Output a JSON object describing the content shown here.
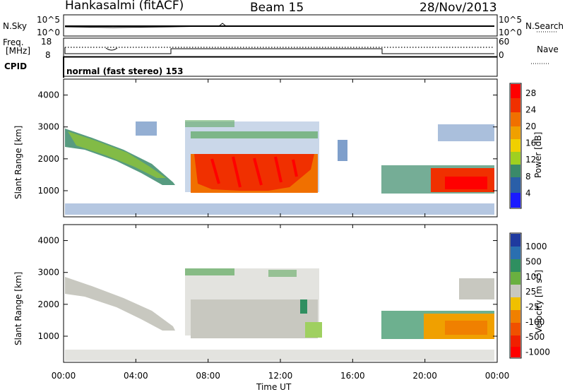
{
  "header": {
    "station": "Hankasalmi (fitACF)",
    "beam": "Beam 15",
    "date": "28/Nov/2013"
  },
  "status_rows": {
    "nsky_label": "N.Sky",
    "nsky_top": "10^5",
    "nsky_bot": "10^0",
    "nsearch_label": "N.Search",
    "nsearch_top": "10^5",
    "nsearch_bot": "10^0",
    "freq_label_1": "Freq.",
    "freq_label_2": "[MHz]",
    "freq_top": "18",
    "freq_bot": "8",
    "nave_label": "Nave",
    "nave_top": "60",
    "nave_bot": "0",
    "cpid_label": "CPID",
    "cpid_text": "normal (fast stereo) 153"
  },
  "colors": {
    "power_scale": [
      "#1a1aff",
      "#2a5fa8",
      "#3a8a6a",
      "#4aa04a",
      "#9fd020",
      "#f0d000",
      "#f0a000",
      "#f07000",
      "#f03000",
      "#ff0000"
    ],
    "velocity_scale": [
      "#1f3a9f",
      "#2a6fb0",
      "#2f8f60",
      "#6ab040",
      "#9fd060",
      "#c8c8c0",
      "#f0c000",
      "#f08000",
      "#f05000",
      "#f02000",
      "#ff0000"
    ],
    "ground_scatter": "#c8c8c0"
  },
  "chart_data": [
    {
      "type": "heatmap",
      "panel": "power",
      "ylabel": "Slant Range [km]",
      "yticks": [
        "1000",
        "2000",
        "3000",
        "4000"
      ],
      "ylim": [
        180,
        4500
      ],
      "colorbar_label": "Power [dB]",
      "colorbar_ticks": [
        "4",
        "8",
        "12",
        "16",
        "20",
        "24",
        "28"
      ],
      "clim": [
        0,
        30
      ],
      "echo_regions": [
        {
          "t_start_h": 0.0,
          "t_end_h": 6.0,
          "range_start_km": 2800,
          "range_end_km": 1100,
          "power_db": 12,
          "note": ""
        },
        {
          "t_start_h": 6.8,
          "t_end_h": 14.3,
          "range_start_km": 900,
          "range_end_km": 2200,
          "power_db": 26,
          "note": ""
        },
        {
          "t_start_h": 18.0,
          "t_end_h": 24.0,
          "range_start_km": 900,
          "range_end_km": 1700,
          "power_db": 24,
          "note": ""
        },
        {
          "t_start_h": 20.5,
          "t_end_h": 24.0,
          "range_start_km": 2500,
          "range_end_km": 3100,
          "power_db": 10,
          "note": ""
        }
      ]
    },
    {
      "type": "heatmap",
      "panel": "velocity",
      "ylabel": "Slant Range [km]",
      "yticks": [
        "1000",
        "2000",
        "3000",
        "4000"
      ],
      "ylim": [
        180,
        4500
      ],
      "colorbar_label": "Velocity [m s^-1]",
      "colorbar_ticks": [
        "1000",
        "500",
        "100",
        "25",
        "-25",
        "-100",
        "-500",
        "-1000"
      ],
      "clim": [
        -1000,
        1000
      ],
      "xlabel": "Time UT",
      "xticks": [
        "00:00",
        "04:00",
        "08:00",
        "12:00",
        "16:00",
        "20:00",
        "00:00"
      ],
      "xlim_hours": [
        0,
        24
      ],
      "echo_regions": [
        {
          "t_start_h": 0.0,
          "t_end_h": 6.0,
          "range_start_km": 2800,
          "range_end_km": 1100,
          "velocity": 0,
          "note": ""
        },
        {
          "t_start_h": 6.8,
          "t_end_h": 14.3,
          "range_start_km": 900,
          "range_end_km": 2200,
          "velocity": 0,
          "note": ""
        },
        {
          "t_start_h": 18.0,
          "t_end_h": 24.0,
          "range_start_km": 900,
          "range_end_km": 1700,
          "velocity": -300,
          "note": ""
        }
      ]
    }
  ]
}
